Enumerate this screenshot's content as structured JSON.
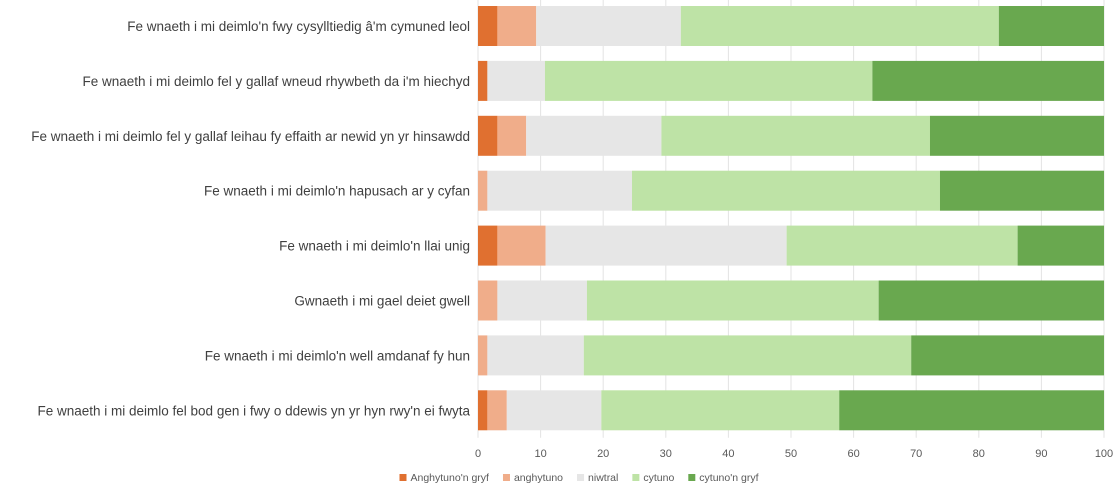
{
  "chart_data": {
    "type": "bar",
    "orientation": "horizontal",
    "stacked": true,
    "categories": [
      "Fe wnaeth i mi deimlo'n fwy cysylltiedig â'm cymuned leol",
      "Fe wnaeth i mi deimlo fel y gallaf wneud rhywbeth da i'm hiechyd",
      "Fe wnaeth i mi deimlo fel y gallaf leihau fy effaith ar newid yn yr hinsawdd",
      "Fe wnaeth i mi deimlo'n hapusach ar y cyfan",
      "Fe wnaeth i mi deimlo'n llai unig",
      "Gwnaeth i mi gael deiet gwell",
      "Fe wnaeth i mi deimlo'n well amdanaf fy hun",
      "Fe wnaeth i mi deimlo fel bod gen i fwy o ddewis yn yr hyn rwy'n ei fwyta"
    ],
    "series": [
      {
        "name": "Anghytuno'n gryf",
        "color": "#E07030",
        "values": [
          3.1,
          1.5,
          3.1,
          0,
          3.1,
          0,
          0,
          1.5
        ]
      },
      {
        "name": "anghytuno",
        "color": "#F0AD8A",
        "values": [
          6.2,
          0,
          4.6,
          1.5,
          7.7,
          3.1,
          1.5,
          3.1
        ]
      },
      {
        "name": "niwtral",
        "color": "#E6E6E6",
        "values": [
          23.1,
          9.2,
          21.6,
          23.1,
          38.5,
          14.3,
          15.4,
          15.1
        ]
      },
      {
        "name": "cytuno",
        "color": "#BEE3A6",
        "values": [
          50.8,
          52.3,
          42.9,
          49.2,
          36.9,
          46.6,
          52.3,
          38.0
        ]
      },
      {
        "name": "cytuno'n gryf",
        "color": "#69A84F",
        "values": [
          16.8,
          37.0,
          27.8,
          26.2,
          13.8,
          36.0,
          30.8,
          42.3
        ]
      }
    ],
    "xlim": [
      0,
      100
    ],
    "xticks": [
      0,
      10,
      20,
      30,
      40,
      50,
      60,
      70,
      80,
      90,
      100
    ],
    "grid": true,
    "legend_position": "bottom-center"
  }
}
